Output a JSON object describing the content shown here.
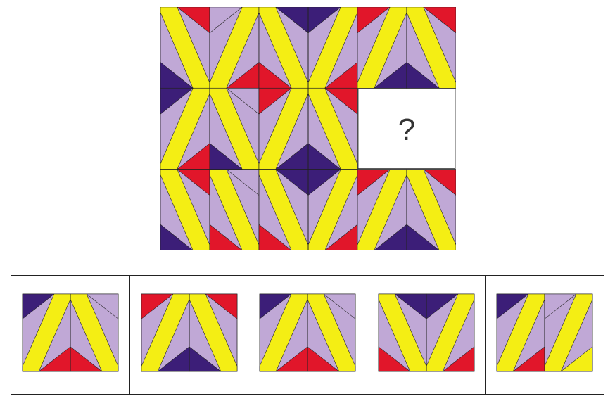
{
  "puzzle": {
    "missing_mark": "?",
    "grid": {
      "rows": 3,
      "cols": 3
    }
  },
  "options": {
    "count": 5
  },
  "colors": {
    "yellow": "#F4EE14",
    "lavender": "#C0A8D6",
    "purple": "#3C1E78",
    "red": "#E1162A",
    "outline": "#222222",
    "blank": "#FFFFFF"
  }
}
